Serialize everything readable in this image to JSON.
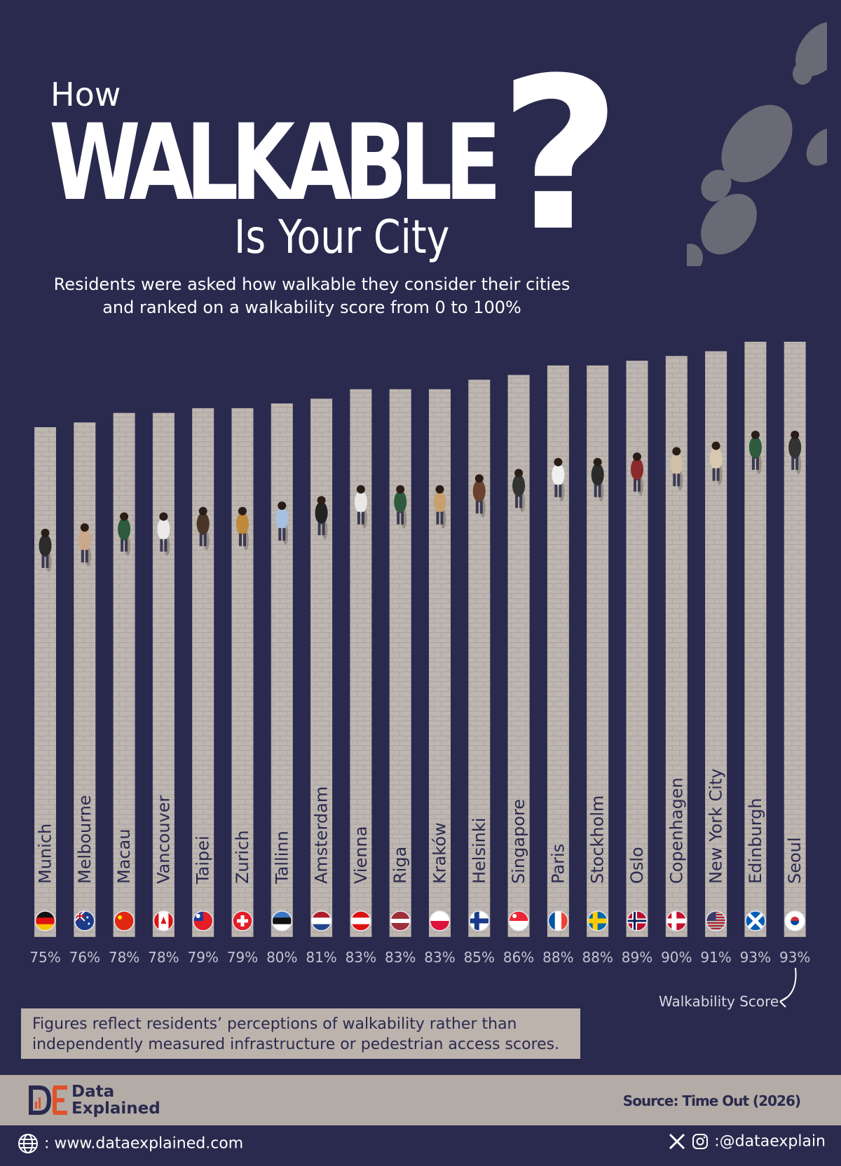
{
  "title": {
    "how": "How",
    "walkable": "WALKABLE",
    "city": "Is Your City",
    "qmark": "?"
  },
  "subtitle": [
    "Residents were asked how walkable they consider their cities",
    "and ranked on a walkability score from 0 to 100%"
  ],
  "chart_data": {
    "type": "bar",
    "categories": [
      "Munich",
      "Melbourne",
      "Macau",
      "Vancouver",
      "Taipei",
      "Zurich",
      "Tallinn",
      "Amsterdam",
      "Vienna",
      "Riga",
      "Kraków",
      "Helsinki",
      "Singapore",
      "Paris",
      "Stockholm",
      "Oslo",
      "Copenhagen",
      "New York City",
      "Edinburgh",
      "Seoul"
    ],
    "values": [
      75,
      76,
      78,
      78,
      79,
      79,
      80,
      81,
      83,
      83,
      83,
      85,
      86,
      88,
      88,
      89,
      90,
      91,
      93,
      93
    ],
    "value_labels": [
      "75%",
      "76%",
      "78%",
      "78%",
      "79%",
      "79%",
      "80%",
      "81%",
      "83%",
      "83%",
      "83%",
      "85%",
      "86%",
      "88%",
      "88%",
      "89%",
      "90%",
      "91%",
      "93%",
      "93%"
    ],
    "value_axis_label": "Walkability Score",
    "flags": [
      "germany",
      "australia",
      "china",
      "canada",
      "taiwan",
      "switzerland",
      "estonia",
      "netherlands",
      "austria",
      "latvia",
      "poland",
      "finland",
      "singapore",
      "france",
      "sweden",
      "norway",
      "denmark",
      "usa",
      "scotland",
      "south-korea"
    ],
    "colors": {
      "background": "#2a2a4e",
      "bar": "#bdb6b1",
      "tile_line": "#aaa39e"
    }
  },
  "note": [
    "Figures reflect residents’ perceptions of walkability rather than",
    "independently measured infrastructure or pedestrian access scores."
  ],
  "brand": {
    "line1": "Data",
    "line2": "Explained",
    "logo_icon": "data-explained-logo"
  },
  "source": "Source: Time Out (2026)",
  "footer": {
    "website": ": www.dataexplained.com",
    "handle": ":@dataexplain",
    "icons": [
      "globe-icon",
      "x-icon",
      "instagram-icon"
    ]
  }
}
